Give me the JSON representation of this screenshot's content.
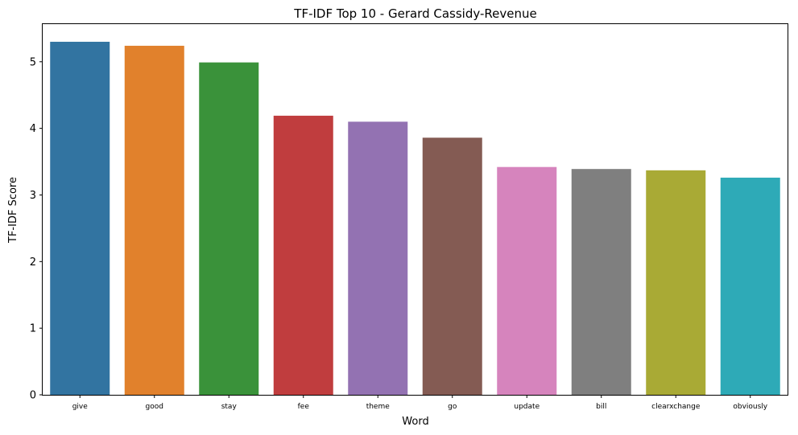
{
  "chart_data": {
    "type": "bar",
    "title": "TF-IDF Top 10 - Gerard Cassidy-Revenue",
    "xlabel": "Word",
    "ylabel": "TF-IDF Score",
    "categories": [
      "give",
      "good",
      "stay",
      "fee",
      "theme",
      "go",
      "update",
      "bill",
      "clearxchange",
      "obviously"
    ],
    "values": [
      5.3,
      5.24,
      4.99,
      4.19,
      4.1,
      3.86,
      3.42,
      3.39,
      3.37,
      3.26
    ],
    "colors": [
      "#3274a1",
      "#e1812c",
      "#3a923a",
      "#c03d3e",
      "#9372b2",
      "#845b53",
      "#d684bd",
      "#7f7f7f",
      "#a9aa35",
      "#2eaab7"
    ],
    "yticks": [
      0,
      1,
      2,
      3,
      4,
      5
    ],
    "ylim": [
      0,
      5.565
    ],
    "grid": false,
    "legend": "none"
  }
}
